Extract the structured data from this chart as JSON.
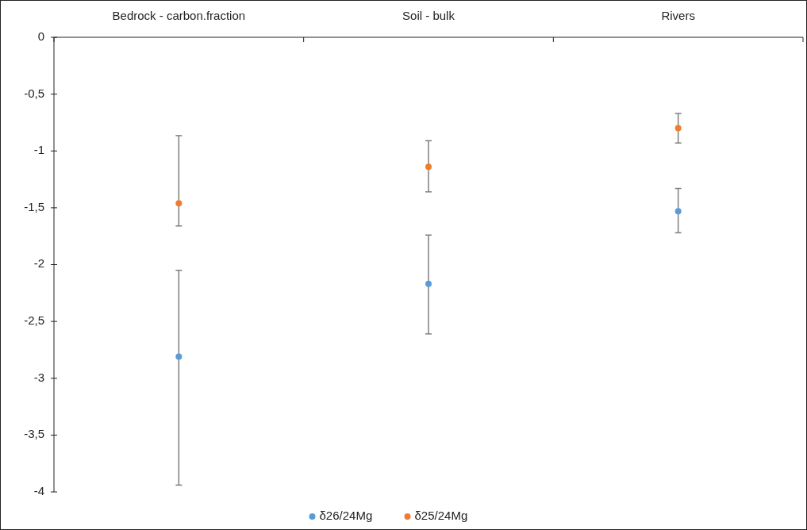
{
  "chart_data": {
    "type": "scatter",
    "categories": [
      "Bedrock - carbon.fraction",
      "Soil - bulk",
      "Rivers"
    ],
    "series": [
      {
        "name": "δ26/24Mg",
        "color": "#5b9bd5",
        "values": [
          -2.81,
          -2.17,
          -1.53
        ],
        "errors": [
          [
            -3.94,
            -2.05
          ],
          [
            -2.61,
            -1.74
          ],
          [
            -1.72,
            -1.33
          ]
        ]
      },
      {
        "name": "δ25/24Mg",
        "color": "#ed7d31",
        "values": [
          -1.46,
          -1.14,
          -0.8
        ],
        "errors": [
          [
            -1.66,
            -0.865
          ],
          [
            -1.36,
            -0.91
          ],
          [
            -0.93,
            -0.67
          ]
        ]
      }
    ],
    "ylim": [
      -4,
      0
    ],
    "yticks": [
      0,
      {
        "value": -0.5,
        "label": "-0,5"
      },
      -1,
      {
        "value": -1.5,
        "label": "-1,5"
      },
      -2,
      {
        "value": -2.5,
        "label": "-2,5"
      },
      -3,
      {
        "value": -3.5,
        "label": "-3,5"
      },
      -4
    ],
    "grid": false,
    "legend": "bottom",
    "marker": "circle"
  }
}
